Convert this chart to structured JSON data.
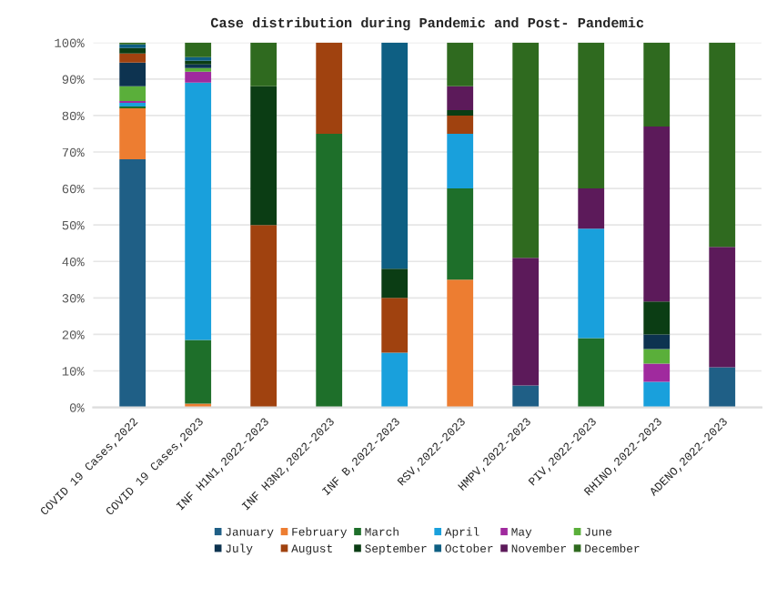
{
  "chart_data": {
    "type": "bar",
    "stacked": true,
    "title": "Case distribution during Pandemic and Post- Pandemic",
    "categories": [
      "COVID 19 Cases,2022",
      "COVID 19 Cases,2023",
      "INF H1N1,2022-2023",
      "INF H3N2,2022-2023",
      "INF B,2022-2023",
      "RSV,2022-2023",
      "HMPV,2022-2023",
      "PIV,2022-2023",
      "RHINO,2022-2023",
      "ADENO,2022-2023"
    ],
    "series": [
      {
        "name": "January",
        "color": "#1f5f86",
        "values": [
          68,
          null,
          0,
          0,
          0,
          0,
          6,
          0,
          0,
          11
        ]
      },
      {
        "name": "February",
        "color": "#ed7d31",
        "values": [
          14,
          1,
          0,
          0,
          0,
          35,
          0,
          0,
          0,
          0
        ]
      },
      {
        "name": "March",
        "color": "#1e6f2a",
        "values": [
          0.5,
          17.5,
          0,
          75,
          0,
          25,
          0,
          19,
          0,
          0
        ]
      },
      {
        "name": "April",
        "color": "#19a0dc",
        "values": [
          1,
          70.5,
          0,
          0,
          15,
          15,
          0,
          30,
          7,
          0
        ]
      },
      {
        "name": "May",
        "color": "#a02a9e",
        "values": [
          0.5,
          3,
          0,
          0,
          0,
          0,
          0,
          0,
          5,
          0
        ]
      },
      {
        "name": "June",
        "color": "#5aaf3a",
        "values": [
          4,
          1,
          0,
          0,
          0,
          0,
          0,
          0,
          4,
          0
        ]
      },
      {
        "name": "July",
        "color": "#0d3350",
        "values": [
          6.5,
          1,
          0,
          0,
          0,
          0,
          0,
          0,
          4,
          0
        ]
      },
      {
        "name": "August",
        "color": "#a0420f",
        "values": [
          2.5,
          0,
          50,
          25,
          15,
          5,
          0,
          0,
          0,
          0
        ]
      },
      {
        "name": "September",
        "color": "#0b3d14",
        "values": [
          1.5,
          1,
          38,
          0,
          8,
          1.5,
          0,
          0,
          9,
          0
        ]
      },
      {
        "name": "October",
        "color": "#0e5f83",
        "values": [
          1,
          1,
          0,
          0,
          62,
          0,
          0,
          0,
          0,
          0
        ]
      },
      {
        "name": "November",
        "color": "#5c1a5a",
        "values": [
          0,
          0,
          0,
          0,
          0,
          6.5,
          35,
          11,
          48,
          33
        ]
      },
      {
        "name": "December",
        "color": "#2f6a1f",
        "values": [
          0.5,
          4,
          12,
          0,
          0,
          12,
          59,
          40,
          23,
          56
        ]
      }
    ],
    "ylim": [
      0,
      100
    ],
    "yticks": [
      {
        "value": 0,
        "label": "0%"
      },
      {
        "value": 10,
        "label": "10%"
      },
      {
        "value": 20,
        "label": "20%"
      },
      {
        "value": 30,
        "label": "30%"
      },
      {
        "value": 40,
        "label": "40%"
      },
      {
        "value": 50,
        "label": "50%"
      },
      {
        "value": 60,
        "label": "60%"
      },
      {
        "value": 70,
        "label": "70%"
      },
      {
        "value": 80,
        "label": "80%"
      },
      {
        "value": 90,
        "label": "90%"
      },
      {
        "value": 100,
        "label": "100%"
      }
    ],
    "grid": "y",
    "legend": "bottom"
  }
}
